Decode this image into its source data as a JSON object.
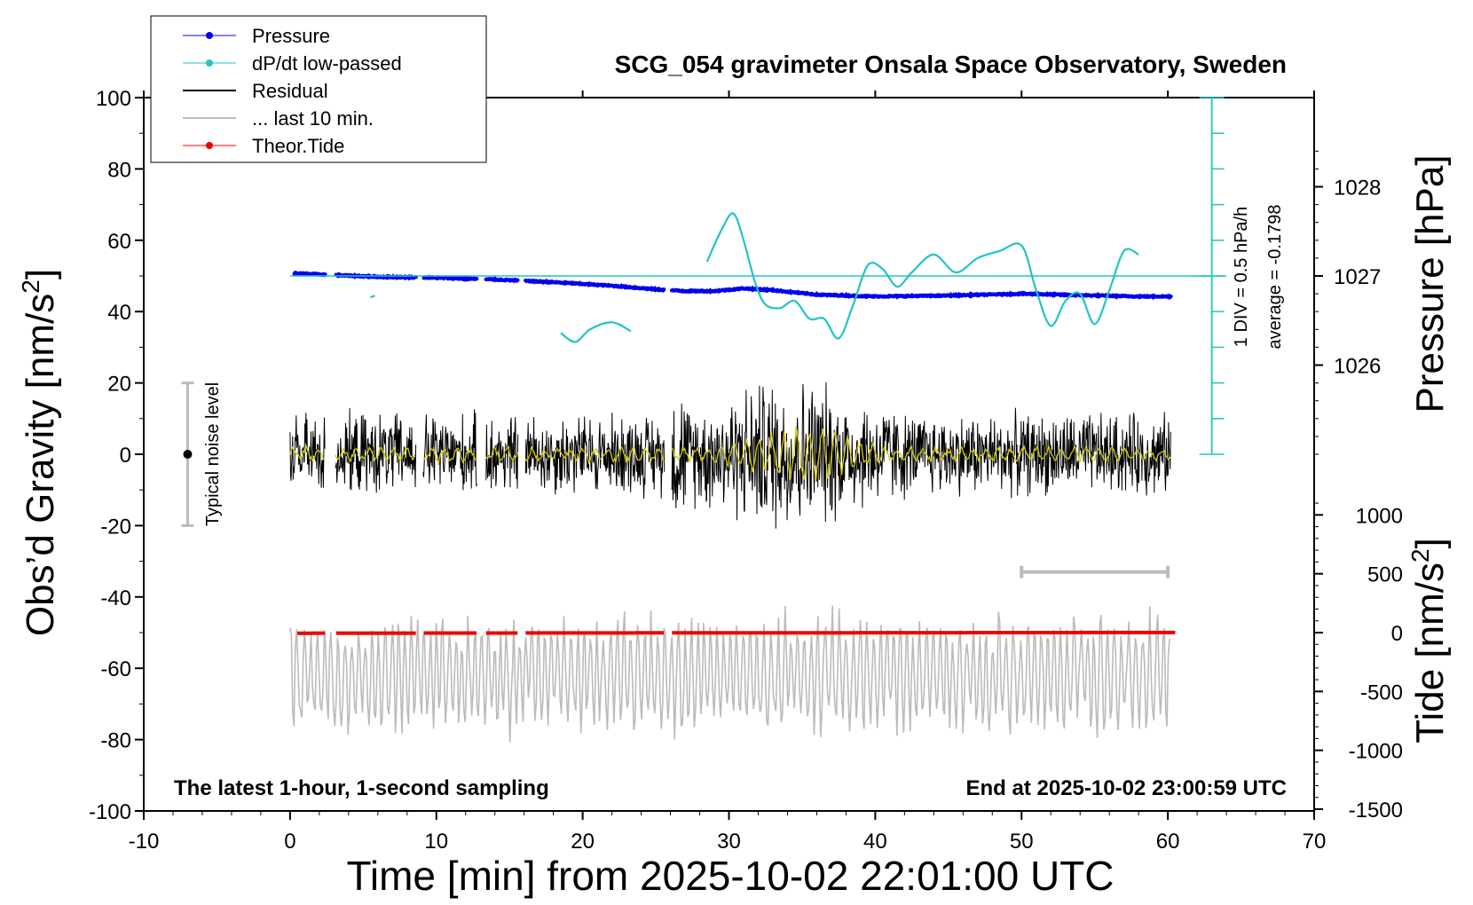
{
  "chart_data": {
    "type": "line",
    "title": "SCG_054 gravimeter Onsala Space Observatory, Sweden",
    "xlabel": "Time [min] from 2025-10-02 22:01:00 UTC",
    "ylabel": "Obs’d Gravity [nm/s",
    "ylabel_sup": "2",
    "ylabel_close": "]",
    "y2label": "Pressure [hPa]",
    "y3label": "Tide [nm/s",
    "y3label_sup": "2",
    "y3label_close": "]",
    "xlim": [
      -10,
      70
    ],
    "ylim": [
      -100,
      100
    ],
    "x_ticks": [
      "-10",
      "0",
      "10",
      "20",
      "30",
      "40",
      "50",
      "60",
      "70"
    ],
    "y_ticks": [
      "-100",
      "-80",
      "-60",
      "-40",
      "-20",
      "0",
      "20",
      "40",
      "60",
      "80",
      "100"
    ],
    "pressure_ticks": [
      "1026",
      "1027",
      "1028"
    ],
    "tide_ticks": [
      "-1500",
      "-1000",
      "-500",
      "0",
      "500",
      "1000"
    ],
    "grid": false,
    "legend_position": "top-left",
    "legend": [
      {
        "name": "Pressure",
        "color": "#0000ee",
        "style": "line-dot"
      },
      {
        "name": "dP/dt low-passed",
        "color": "#22c4c4",
        "style": "line-dot"
      },
      {
        "name": "Residual",
        "color": "#000000",
        "style": "line"
      },
      {
        "name": "... last 10 min.",
        "color": "#bbbbbb",
        "style": "line"
      },
      {
        "name": "Theor.Tide",
        "color": "#ee0000",
        "style": "line-dot"
      }
    ],
    "annotations": {
      "bottom_left": "The latest 1-hour, 1-second sampling",
      "bottom_right": "End at 2025-10-02 23:00:59 UTC",
      "noise_label": "Typical noise level",
      "dpdt_scale": "1 DIV = 0.5 hPa/h",
      "dpdt_average": "average = -0.1798"
    },
    "noise_bar": {
      "x": -7,
      "y_low": -20,
      "y_high": 20
    },
    "last10_bar": {
      "x_start": 50,
      "x_end": 60,
      "y": -33
    },
    "dpdt_scale_axis": {
      "x": 63,
      "y_low": 0,
      "y_high": 100,
      "divisions": 10
    },
    "dpdt_zero_line_y": 50,
    "series": [
      {
        "name": "Pressure",
        "color": "#0000ee",
        "unit": "hPa",
        "x": [
          0.3,
          3,
          6,
          10,
          14,
          18,
          22,
          25,
          27,
          29,
          31,
          33,
          36,
          40,
          45,
          50,
          55,
          58,
          60.2
        ],
        "values": [
          1027.03,
          1027.01,
          1026.99,
          1026.98,
          1026.96,
          1026.93,
          1026.89,
          1026.85,
          1026.83,
          1026.83,
          1026.86,
          1026.84,
          1026.79,
          1026.77,
          1026.78,
          1026.8,
          1026.78,
          1026.77,
          1026.77
        ]
      },
      {
        "name": "dP/dt low-passed",
        "color": "#22c4c4",
        "segments": [
          {
            "x": [
              5.5,
              5.8
            ],
            "values": [
              44,
              44.5
            ]
          },
          {
            "x": [
              18.5,
              19.5,
              20.5,
              22,
              23.3
            ],
            "values": [
              34,
              31.5,
              35,
              37,
              34.5
            ]
          },
          {
            "x": [
              28.5,
              29.5,
              30.3,
              31,
              31.8,
              32.5,
              33.5,
              34.5,
              35.5,
              36.5,
              37.5,
              38.5,
              39.5,
              40.5,
              41.5,
              42.5,
              44,
              45.5,
              47,
              48.5,
              50,
              51,
              52,
              53,
              54,
              55,
              56,
              57,
              58
            ],
            "values": [
              54,
              63,
              67.5,
              60,
              48,
              42,
              41,
              43,
              38,
              38,
              32.5,
              42,
              53,
              52,
              47,
              51,
              56,
              51,
              55,
              57,
              58.5,
              46,
              36,
              43,
              45,
              36.5,
              46,
              57,
              56
            ]
          }
        ]
      },
      {
        "name": "Residual",
        "color": "#000000",
        "segments": [
          [
            0,
            2.4
          ],
          [
            3.1,
            8.6
          ],
          [
            9.1,
            12.8
          ],
          [
            13.4,
            15.6
          ],
          [
            16.1,
            25.6
          ],
          [
            26.1,
            60.2
          ]
        ]
      },
      {
        "name": "Residual low-passed",
        "color": "#d4cc10"
      },
      {
        "name": "Theor.Tide",
        "color": "#ee0000",
        "unit": "nm/s2",
        "x": [
          0.5,
          10,
          20,
          30,
          40,
          50,
          60.5
        ],
        "values": [
          -5,
          -4,
          -3,
          -2,
          -1,
          0,
          1
        ]
      },
      {
        "name": "... last 10 min.",
        "color": "#bbbbbb",
        "x_start": 0,
        "x_end": 60.2
      }
    ]
  }
}
